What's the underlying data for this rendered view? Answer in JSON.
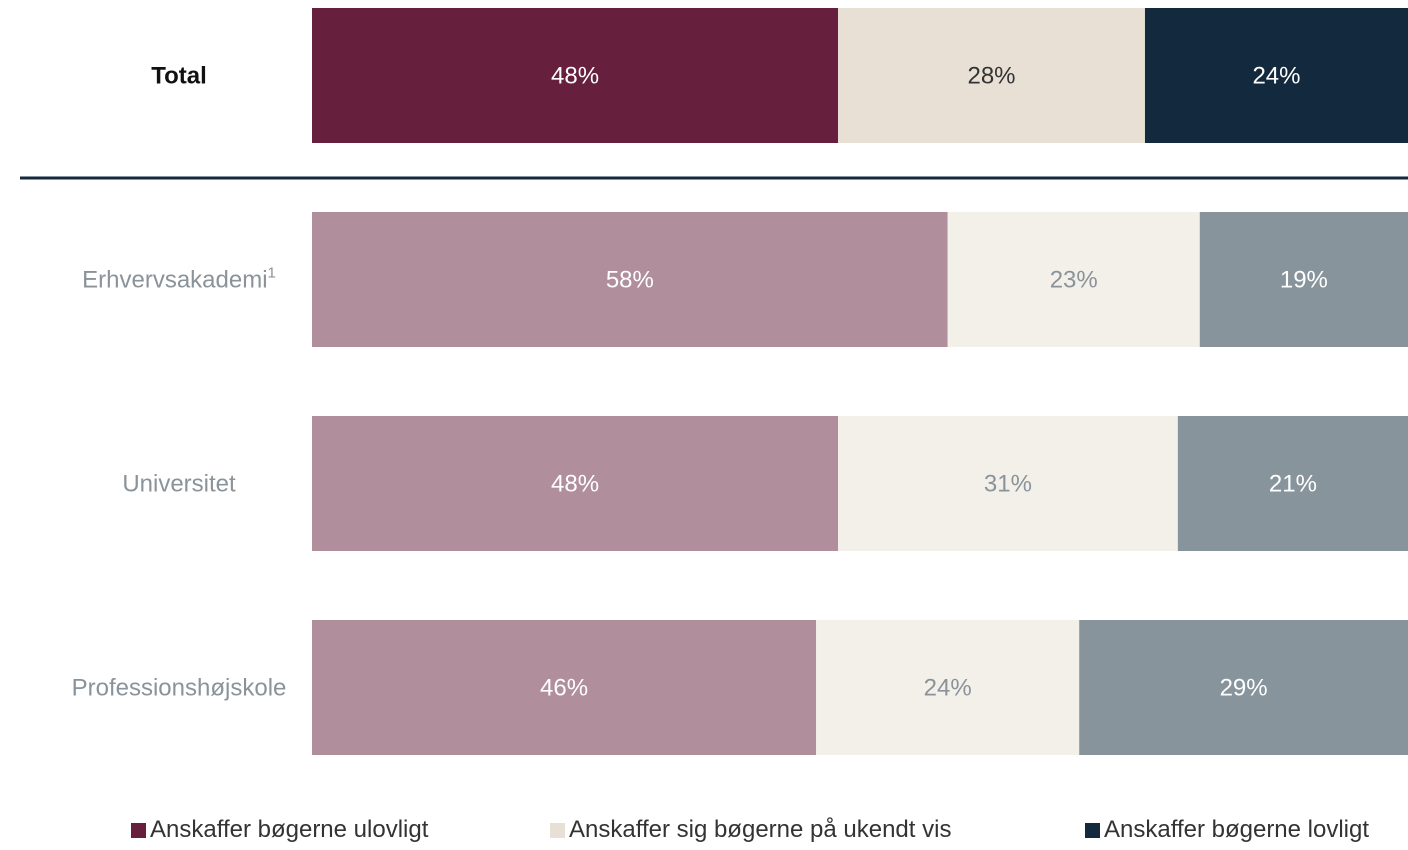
{
  "chart_data": {
    "type": "bar",
    "orientation": "horizontal",
    "stacked": true,
    "normalized": true,
    "categories": [
      "Total",
      "Erhvervsakademi",
      "Universitet",
      "Professionshøjskole"
    ],
    "category_footnotes": [
      "",
      "1",
      "",
      ""
    ],
    "highlight_category": "Total",
    "series": [
      {
        "name": "Anskaffer bøgerne ulovligt",
        "values": [
          48,
          58,
          48,
          46
        ],
        "labels": [
          "48%",
          "58%",
          "48%",
          "46%"
        ]
      },
      {
        "name": "Anskaffer sig bøgerne på ukendt vis",
        "values": [
          28,
          23,
          31,
          24
        ],
        "labels": [
          "28%",
          "23%",
          "31%",
          "24%"
        ]
      },
      {
        "name": "Anskaffer bøgerne lovligt",
        "values": [
          24,
          19,
          21,
          29
        ],
        "labels": [
          "24%",
          "19%",
          "21%",
          "29%"
        ]
      }
    ],
    "xlim": [
      0,
      100
    ],
    "grid": false,
    "legend_position": "bottom",
    "title": "",
    "xlabel": "",
    "ylabel": ""
  },
  "colors": {
    "illegal": "#661f3c",
    "unknown": "#e8e0d5",
    "legal": "#13293d",
    "illegal_muted": "#b08e9c",
    "unknown_muted": "#f3f0ea",
    "legal_muted": "#87949c",
    "divider": "#13293d",
    "category_label": "#8a9399",
    "highlight_label": "#111111",
    "label_on_dark": "#ffffff",
    "label_on_light_highlight": "#333333",
    "label_on_light_muted": "#8a9399"
  }
}
